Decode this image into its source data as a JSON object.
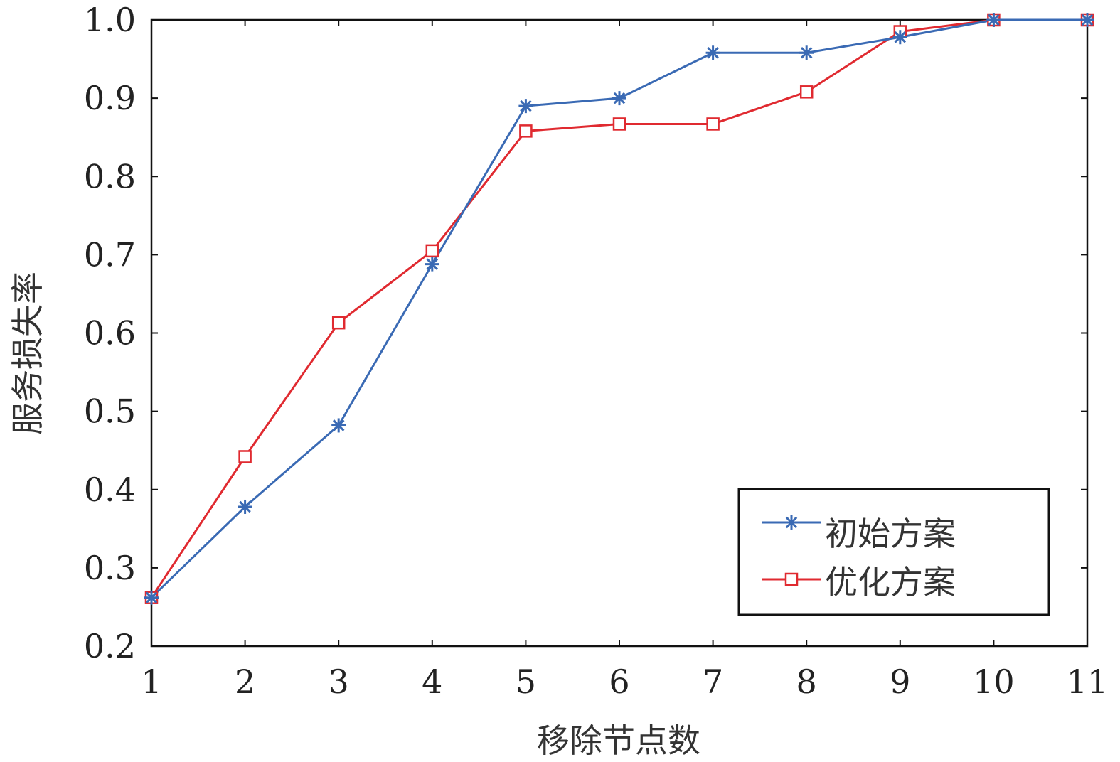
{
  "colors": {
    "series_1": "#3a6ab4",
    "series_2": "#e02a30",
    "axis": "#111111"
  },
  "chart_data": {
    "type": "line",
    "title": "",
    "xlabel": "移除节点数",
    "ylabel": "服务损失率",
    "xlim": [
      1,
      11
    ],
    "ylim": [
      0.2,
      1.0
    ],
    "x": [
      1,
      2,
      3,
      4,
      5,
      6,
      7,
      8,
      9,
      10,
      11
    ],
    "x_tick_labels": [
      "1",
      "2",
      "3",
      "4",
      "5",
      "6",
      "7",
      "8",
      "9",
      "10",
      "11"
    ],
    "y_ticks": [
      0.2,
      0.3,
      0.4,
      0.5,
      0.6,
      0.7,
      0.8,
      0.9,
      1.0
    ],
    "y_tick_labels": [
      "0.2",
      "0.3",
      "0.4",
      "0.5",
      "0.6",
      "0.7",
      "0.8",
      "0.9",
      "1.0"
    ],
    "legend_position": "bottom-right",
    "grid": false,
    "series": [
      {
        "name": "初始方案",
        "marker": "asterisk",
        "values": [
          0.262,
          0.378,
          0.482,
          0.688,
          0.89,
          0.9,
          0.958,
          0.958,
          0.978,
          1.0,
          1.0
        ]
      },
      {
        "name": "优化方案",
        "marker": "square",
        "values": [
          0.262,
          0.442,
          0.613,
          0.705,
          0.858,
          0.867,
          0.867,
          0.908,
          0.985,
          1.0,
          1.0
        ]
      }
    ]
  }
}
